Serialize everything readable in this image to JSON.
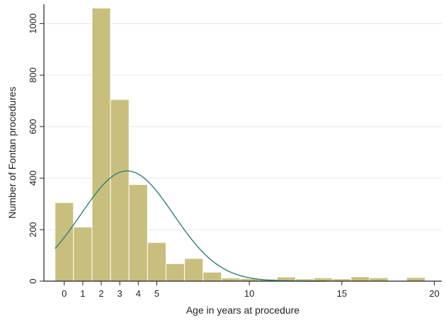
{
  "chart_data": {
    "type": "bar",
    "xlabel": "Age in years at procedure",
    "ylabel": "Number of Fontan procedures",
    "xlim": [
      -1.1,
      20.4
    ],
    "ylim": [
      0,
      1075
    ],
    "x_ticks": [
      0,
      1,
      2,
      3,
      4,
      5,
      10,
      15,
      20
    ],
    "y_ticks": [
      0,
      200,
      400,
      600,
      800,
      1000
    ],
    "bin_width": 1,
    "bins": [
      {
        "start": -0.5,
        "value": 305
      },
      {
        "start": 0.5,
        "value": 210
      },
      {
        "start": 1.5,
        "value": 1060
      },
      {
        "start": 2.5,
        "value": 705
      },
      {
        "start": 3.5,
        "value": 375
      },
      {
        "start": 4.5,
        "value": 150
      },
      {
        "start": 5.5,
        "value": 68
      },
      {
        "start": 6.5,
        "value": 88
      },
      {
        "start": 7.5,
        "value": 35
      },
      {
        "start": 8.5,
        "value": 12
      },
      {
        "start": 9.5,
        "value": 10
      },
      {
        "start": 10.5,
        "value": 8
      },
      {
        "start": 11.5,
        "value": 16
      },
      {
        "start": 12.5,
        "value": 9
      },
      {
        "start": 13.5,
        "value": 13
      },
      {
        "start": 14.5,
        "value": 9
      },
      {
        "start": 15.5,
        "value": 17
      },
      {
        "start": 16.5,
        "value": 13
      },
      {
        "start": 17.5,
        "value": 0
      },
      {
        "start": 18.5,
        "value": 14
      }
    ],
    "normal_curve": {
      "mean": 3.4,
      "sd": 2.5,
      "peak": 428
    },
    "grid": true,
    "colors": {
      "bar_fill": "#c8bf7e",
      "bar_stroke": "#ffffff",
      "curve": "#2e7f78",
      "grid": "#e6e6e6",
      "axis": "#222222"
    }
  }
}
